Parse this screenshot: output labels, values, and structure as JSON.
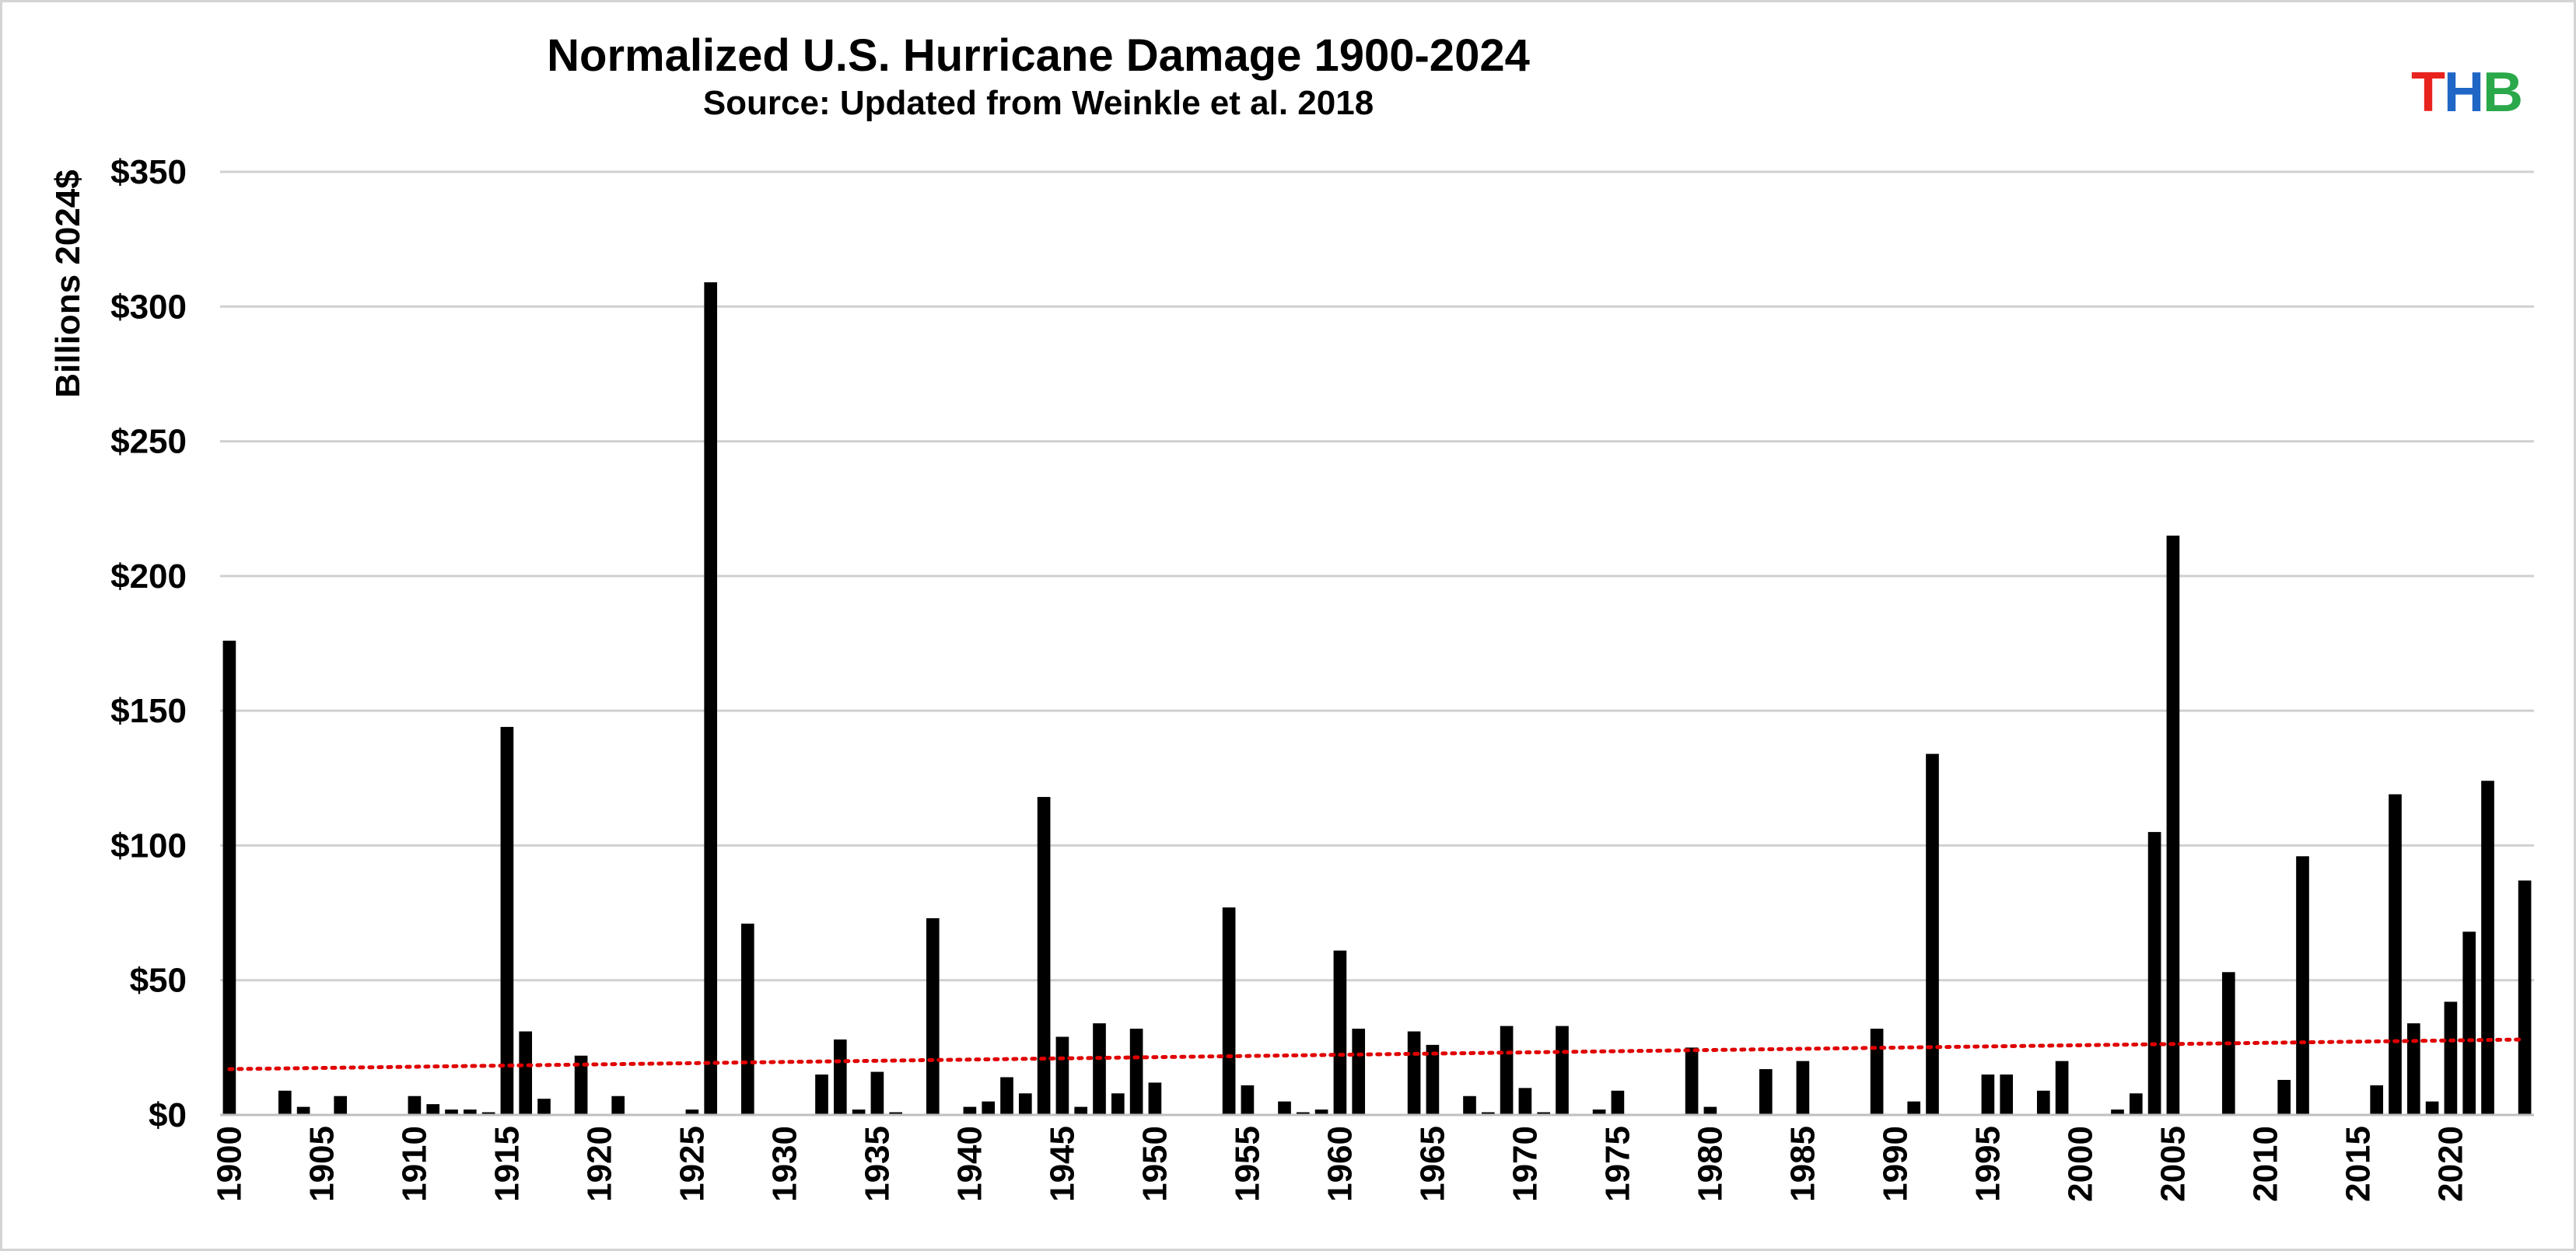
{
  "chart_data": {
    "type": "bar",
    "title": "Normalized U.S. Hurricane Damage 1900-2024",
    "subtitle": "Source: Updated from Weinkle et al. 2018",
    "ylabel": "Billions 2024$",
    "xlabel": "",
    "ylim": [
      0,
      350
    ],
    "yticks": [
      0,
      50,
      100,
      150,
      200,
      250,
      300,
      350
    ],
    "ytick_labels": [
      "$0",
      "$50",
      "$100",
      "$150",
      "$200",
      "$250",
      "$300",
      "$350"
    ],
    "xtick_labels": [
      "1900",
      "1905",
      "1910",
      "1915",
      "1920",
      "1925",
      "1930",
      "1935",
      "1940",
      "1945",
      "1950",
      "1955",
      "1960",
      "1965",
      "1970",
      "1975",
      "1980",
      "1985",
      "1990",
      "1995",
      "2000",
      "2005",
      "2010",
      "2015",
      "2020"
    ],
    "grid": true,
    "legend": "none",
    "series": [
      {
        "name": "Normalized damage",
        "color": "#000000",
        "x": [
          1900,
          1901,
          1902,
          1903,
          1904,
          1905,
          1906,
          1907,
          1908,
          1909,
          1910,
          1911,
          1912,
          1913,
          1914,
          1915,
          1916,
          1917,
          1918,
          1919,
          1920,
          1921,
          1922,
          1923,
          1924,
          1925,
          1926,
          1927,
          1928,
          1929,
          1930,
          1931,
          1932,
          1933,
          1934,
          1935,
          1936,
          1937,
          1938,
          1939,
          1940,
          1941,
          1942,
          1943,
          1944,
          1945,
          1946,
          1947,
          1948,
          1949,
          1950,
          1951,
          1952,
          1953,
          1954,
          1955,
          1956,
          1957,
          1958,
          1959,
          1960,
          1961,
          1962,
          1963,
          1964,
          1965,
          1966,
          1967,
          1968,
          1969,
          1970,
          1971,
          1972,
          1973,
          1974,
          1975,
          1976,
          1977,
          1978,
          1979,
          1980,
          1981,
          1982,
          1983,
          1984,
          1985,
          1986,
          1987,
          1988,
          1989,
          1990,
          1991,
          1992,
          1993,
          1994,
          1995,
          1996,
          1997,
          1998,
          1999,
          2000,
          2001,
          2002,
          2003,
          2004,
          2005,
          2006,
          2007,
          2008,
          2009,
          2010,
          2011,
          2012,
          2013,
          2014,
          2015,
          2016,
          2017,
          2018,
          2019,
          2020,
          2021,
          2022,
          2023,
          2024
        ],
        "values": [
          176,
          0,
          0,
          9,
          3,
          0,
          7,
          0,
          0,
          0,
          7,
          4,
          2,
          2,
          1,
          144,
          31,
          6,
          0,
          22,
          0,
          7,
          0,
          0,
          0,
          2,
          309,
          0,
          71,
          0,
          0,
          0,
          15,
          28,
          2,
          16,
          1,
          0,
          73,
          0,
          3,
          5,
          14,
          8,
          118,
          29,
          3,
          34,
          8,
          32,
          12,
          0,
          0,
          0,
          77,
          11,
          0,
          5,
          1,
          2,
          61,
          32,
          0,
          0,
          31,
          26,
          0,
          7,
          1,
          33,
          10,
          1,
          33,
          0,
          2,
          9,
          0,
          0,
          0,
          25,
          3,
          0,
          0,
          17,
          0,
          20,
          0,
          0,
          0,
          32,
          0,
          5,
          134,
          0,
          0,
          15,
          15,
          0,
          9,
          20,
          0,
          0,
          2,
          8,
          105,
          215,
          0,
          0,
          53,
          0,
          0,
          13,
          96,
          0,
          0,
          0,
          11,
          119,
          34,
          5,
          42,
          68,
          124,
          0,
          87
        ]
      },
      {
        "name": "Linear trend",
        "type": "line",
        "style": "dotted",
        "color": "#e00000",
        "x": [
          1900,
          2024
        ],
        "values": [
          17,
          28
        ]
      }
    ]
  },
  "logo": {
    "letters": [
      "T",
      "H",
      "B"
    ],
    "colors": [
      "#e8231e",
      "#1f66c6",
      "#2aa84a"
    ]
  }
}
